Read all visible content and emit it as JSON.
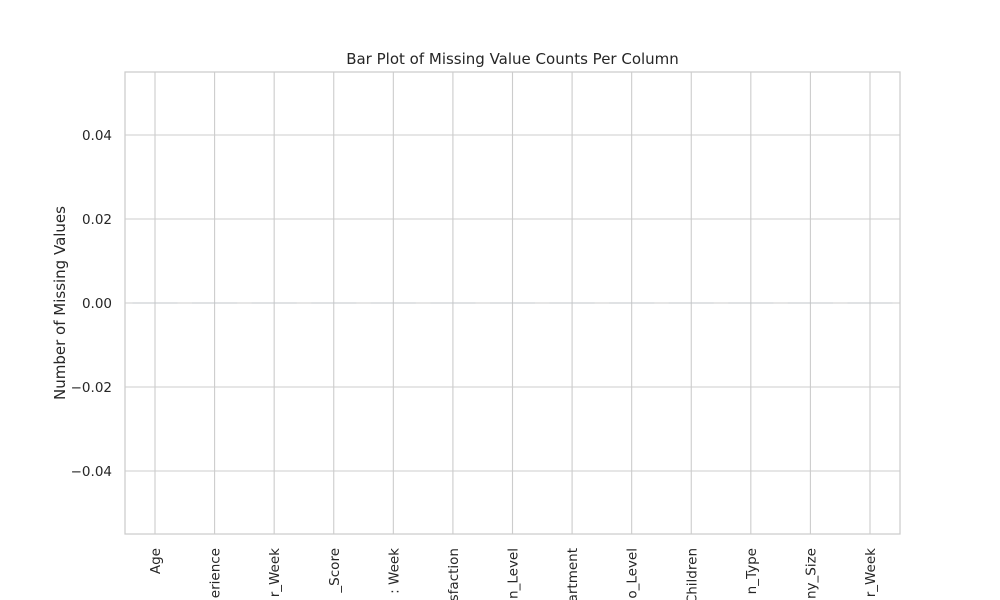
{
  "chart_data": {
    "type": "bar",
    "title": "Bar Plot of Missing Value Counts Per Column",
    "xlabel": "",
    "ylabel": "Number of Missing Values",
    "categories": [
      "Age",
      "Years_of_Experience",
      "Hours_Per_Week",
      "Productivity_Score",
      "Projects_Per_Week",
      "Job_Satisfaction",
      "Education_Level",
      "Department",
      "Job_Level",
      "Number_of_Children",
      "Contract_Type",
      "Company_Size",
      "Meetings_Per_Week"
    ],
    "categories_visible": [
      "Age",
      "erience",
      "r_Week",
      "_Score",
      ": Week",
      "sfaction",
      "n_Level",
      "artment",
      "o_Level",
      "Children",
      "n_Type",
      "ny_Size",
      "r_Week"
    ],
    "values": [
      0,
      0,
      0,
      0,
      0,
      0,
      0,
      0,
      0,
      0,
      0,
      0,
      0
    ],
    "ylim": [
      -0.055,
      0.055
    ],
    "yticks": [
      -0.04,
      -0.02,
      0.0,
      0.02,
      0.04
    ],
    "ytick_labels": [
      "−0.04",
      "−0.02",
      "0.00",
      "0.02",
      "0.04"
    ],
    "grid": true,
    "bar_color": "#5b8fbf",
    "grid_color": "#cccccc",
    "axes_edge_color": "#cccccc"
  }
}
